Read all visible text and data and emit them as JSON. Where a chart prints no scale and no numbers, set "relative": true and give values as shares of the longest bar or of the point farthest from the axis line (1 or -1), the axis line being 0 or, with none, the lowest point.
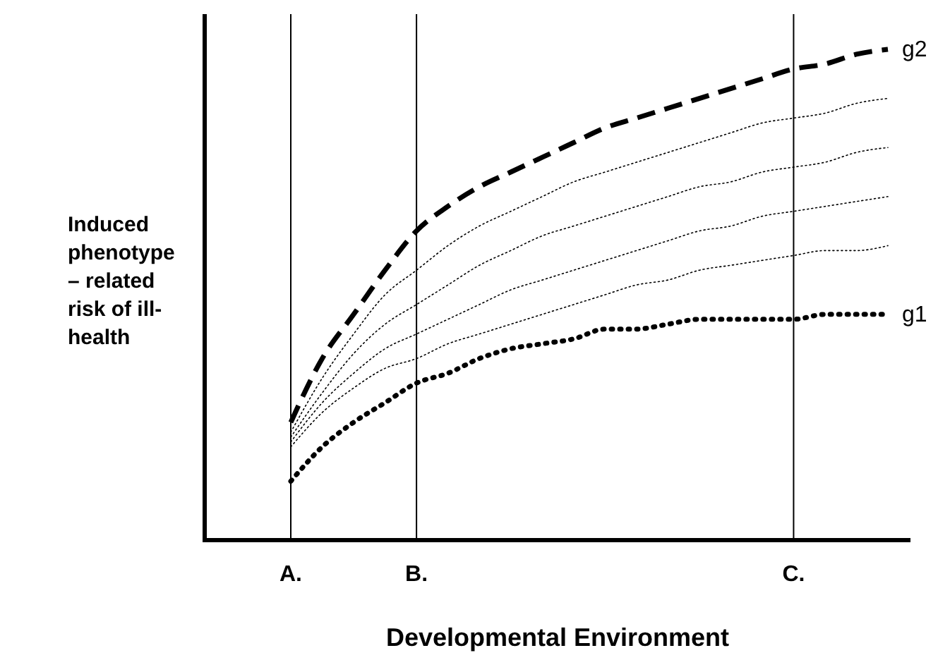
{
  "chart_data": {
    "type": "line",
    "relative": true,
    "xlabel": "Developmental Environment",
    "ylabel": "Induced\nphenotype\n– related\nrisk of ill-\nhealth",
    "categories": [
      "A.",
      null,
      null,
      null,
      "B.",
      null,
      null,
      null,
      null,
      null,
      null,
      null,
      null,
      null,
      null,
      null,
      "C.",
      null,
      null,
      null
    ],
    "ref_lines": [
      {
        "axis": "x",
        "value": "A.",
        "color": "#000000"
      },
      {
        "axis": "x",
        "value": "B.",
        "color": "#000000"
      },
      {
        "axis": "x",
        "value": "C.",
        "color": "#000000"
      }
    ],
    "grid": false,
    "series": [
      {
        "name": "g2",
        "color": "#000000",
        "line_style": "dashed",
        "values": [
          0.24,
          0.37,
          0.46,
          0.55,
          0.63,
          0.68,
          0.72,
          0.75,
          0.78,
          0.81,
          0.84,
          0.86,
          0.88,
          0.9,
          0.92,
          0.94,
          0.96,
          0.97,
          0.99,
          1
        ]
      },
      {
        "color": "#000000",
        "line_style": "dotted",
        "values": [
          0.22,
          0.33,
          0.42,
          0.5,
          0.55,
          0.6,
          0.64,
          0.67,
          0.7,
          0.73,
          0.75,
          0.77,
          0.79,
          0.81,
          0.83,
          0.85,
          0.86,
          0.87,
          0.89,
          0.9
        ]
      },
      {
        "color": "#000000",
        "line_style": "dotted",
        "values": [
          0.21,
          0.3,
          0.38,
          0.44,
          0.48,
          0.52,
          0.56,
          0.59,
          0.62,
          0.64,
          0.66,
          0.68,
          0.7,
          0.72,
          0.73,
          0.75,
          0.76,
          0.77,
          0.79,
          0.8
        ]
      },
      {
        "color": "#000000",
        "line_style": "dotted",
        "values": [
          0.2,
          0.28,
          0.34,
          0.39,
          0.42,
          0.45,
          0.48,
          0.51,
          0.53,
          0.55,
          0.57,
          0.59,
          0.61,
          0.63,
          0.64,
          0.66,
          0.67,
          0.68,
          0.69,
          0.7
        ]
      },
      {
        "color": "#000000",
        "line_style": "dotted",
        "values": [
          0.19,
          0.26,
          0.31,
          0.35,
          0.37,
          0.4,
          0.42,
          0.44,
          0.46,
          0.48,
          0.5,
          0.52,
          0.53,
          0.55,
          0.56,
          0.57,
          0.58,
          0.59,
          0.59,
          0.6
        ]
      },
      {
        "name": "g1",
        "color": "#000000",
        "line_style": "dotted",
        "values": [
          0.12,
          0.19,
          0.24,
          0.28,
          0.32,
          0.34,
          0.37,
          0.39,
          0.4,
          0.41,
          0.43,
          0.43,
          0.44,
          0.45,
          0.45,
          0.45,
          0.45,
          0.46,
          0.46,
          0.46
        ]
      }
    ]
  }
}
